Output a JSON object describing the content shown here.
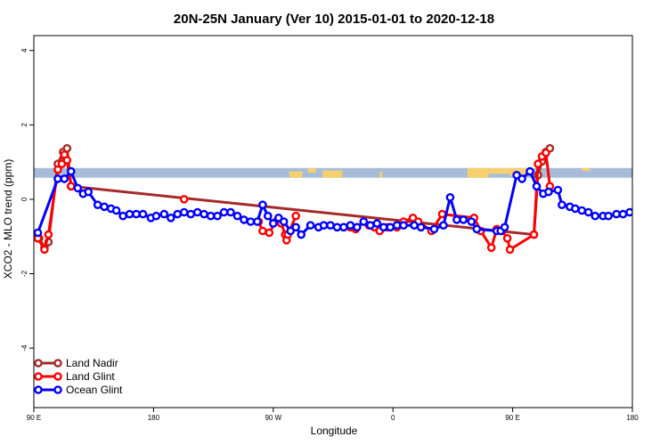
{
  "chart_data": {
    "type": "line",
    "title": "20N-25N January (Ver 10)   2015-01-01 to 2020-12-18",
    "xlabel": "Longitude",
    "ylabel": "XCO2 - MLO trend (ppm)",
    "xlim": [
      90,
      540
    ],
    "ylim": [
      -5.6,
      4.4
    ],
    "x_ticks": [
      {
        "value": 90,
        "label": "90 E"
      },
      {
        "value": 180,
        "label": "180"
      },
      {
        "value": 270,
        "label": "90 W"
      },
      {
        "value": 360,
        "label": "0"
      },
      {
        "value": 450,
        "label": "90 E"
      },
      {
        "value": 540,
        "label": "180"
      }
    ],
    "y_ticks": [
      {
        "value": -4,
        "label": "-4"
      },
      {
        "value": -2,
        "label": "-2"
      },
      {
        "value": 0,
        "label": "0"
      },
      {
        "value": 2,
        "label": "2"
      },
      {
        "value": 4,
        "label": "4"
      }
    ],
    "land_mask_band": {
      "y_range": [
        0.58,
        0.84
      ],
      "ocean_color": "#a7bcd9",
      "land_color": "#f5d06e"
    },
    "legend_position": "bottom-left",
    "series": [
      {
        "name": "Land Nadir",
        "color": "#a52a2a",
        "x": [
          94,
          98,
          101,
          108,
          112,
          115,
          118,
          466,
          469,
          472,
          475,
          478
        ],
        "y": [
          -1.05,
          -1.3,
          -1.15,
          0.95,
          1.27,
          1.37,
          0.35,
          -0.95,
          0.65,
          1.02,
          1.27,
          1.37
        ]
      },
      {
        "name": "Land Glint",
        "color": "#ff0000",
        "x": [
          93,
          98,
          101,
          108,
          111,
          113,
          115,
          118,
          203,
          259,
          262,
          267,
          272,
          276,
          279,
          280,
          281,
          287,
          323,
          328,
          332,
          338,
          342,
          346,
          350,
          356,
          363,
          368,
          375,
          379,
          389,
          397,
          421,
          426,
          434,
          438,
          442,
          446,
          448,
          466,
          469,
          472,
          475,
          478
        ],
        "y": [
          -1.05,
          -1.35,
          -0.95,
          0.8,
          0.95,
          1.2,
          1.05,
          0.35,
          0.0,
          -0.6,
          -0.85,
          -0.9,
          -0.6,
          -0.65,
          -0.95,
          -1.1,
          -0.95,
          -0.45,
          -0.75,
          -0.75,
          -0.8,
          -0.6,
          -0.7,
          -0.75,
          -0.85,
          -0.75,
          -0.75,
          -0.6,
          -0.5,
          -0.6,
          -0.85,
          -0.4,
          -0.5,
          -0.85,
          -1.3,
          -0.8,
          -0.85,
          -1.05,
          -1.35,
          -0.95,
          0.95,
          1.15,
          1.25,
          0.35
        ],
        "segments": [
          [
            0,
            7
          ],
          [
            8,
            8
          ],
          [
            9,
            17
          ],
          [
            18,
            43
          ]
        ]
      },
      {
        "name": "Ocean Glint",
        "color": "#0000ff",
        "x": [
          93,
          108,
          113,
          118,
          123,
          127,
          131,
          138,
          143,
          148,
          152,
          157,
          162,
          167,
          172,
          178,
          182,
          188,
          193,
          198,
          203,
          208,
          213,
          218,
          223,
          228,
          233,
          238,
          243,
          248,
          253,
          258,
          262,
          266,
          270,
          274,
          278,
          283,
          287,
          291,
          298,
          304,
          308,
          313,
          318,
          323,
          328,
          333,
          338,
          343,
          348,
          353,
          358,
          363,
          368,
          376,
          381,
          391,
          398,
          403,
          408,
          413,
          419,
          423,
          438,
          441,
          444,
          453,
          457,
          463,
          468,
          473,
          477,
          484,
          487,
          493,
          497,
          502,
          507,
          512,
          518,
          522,
          528,
          533,
          538
        ],
        "y": [
          -0.9,
          0.55,
          0.55,
          0.75,
          0.3,
          0.15,
          0.2,
          -0.15,
          -0.2,
          -0.25,
          -0.3,
          -0.45,
          -0.4,
          -0.4,
          -0.4,
          -0.5,
          -0.45,
          -0.4,
          -0.5,
          -0.4,
          -0.35,
          -0.4,
          -0.35,
          -0.4,
          -0.45,
          -0.45,
          -0.35,
          -0.35,
          -0.45,
          -0.55,
          -0.6,
          -0.6,
          -0.15,
          -0.45,
          -0.65,
          -0.5,
          -0.6,
          -0.85,
          -0.75,
          -0.95,
          -0.7,
          -0.75,
          -0.7,
          -0.7,
          -0.75,
          -0.75,
          -0.7,
          -0.75,
          -0.6,
          -0.7,
          -0.65,
          -0.75,
          -0.75,
          -0.7,
          -0.7,
          -0.7,
          -0.75,
          -0.8,
          -0.7,
          0.05,
          -0.55,
          -0.55,
          -0.6,
          -0.8,
          -0.85,
          -0.85,
          -0.75,
          0.65,
          0.55,
          0.75,
          0.35,
          0.15,
          0.2,
          0.25,
          -0.15,
          -0.2,
          -0.25,
          -0.3,
          -0.35,
          -0.45,
          -0.45,
          -0.45,
          -0.4,
          -0.4,
          -0.35
        ],
        "segments": [
          [
            0,
            84
          ]
        ]
      }
    ]
  }
}
